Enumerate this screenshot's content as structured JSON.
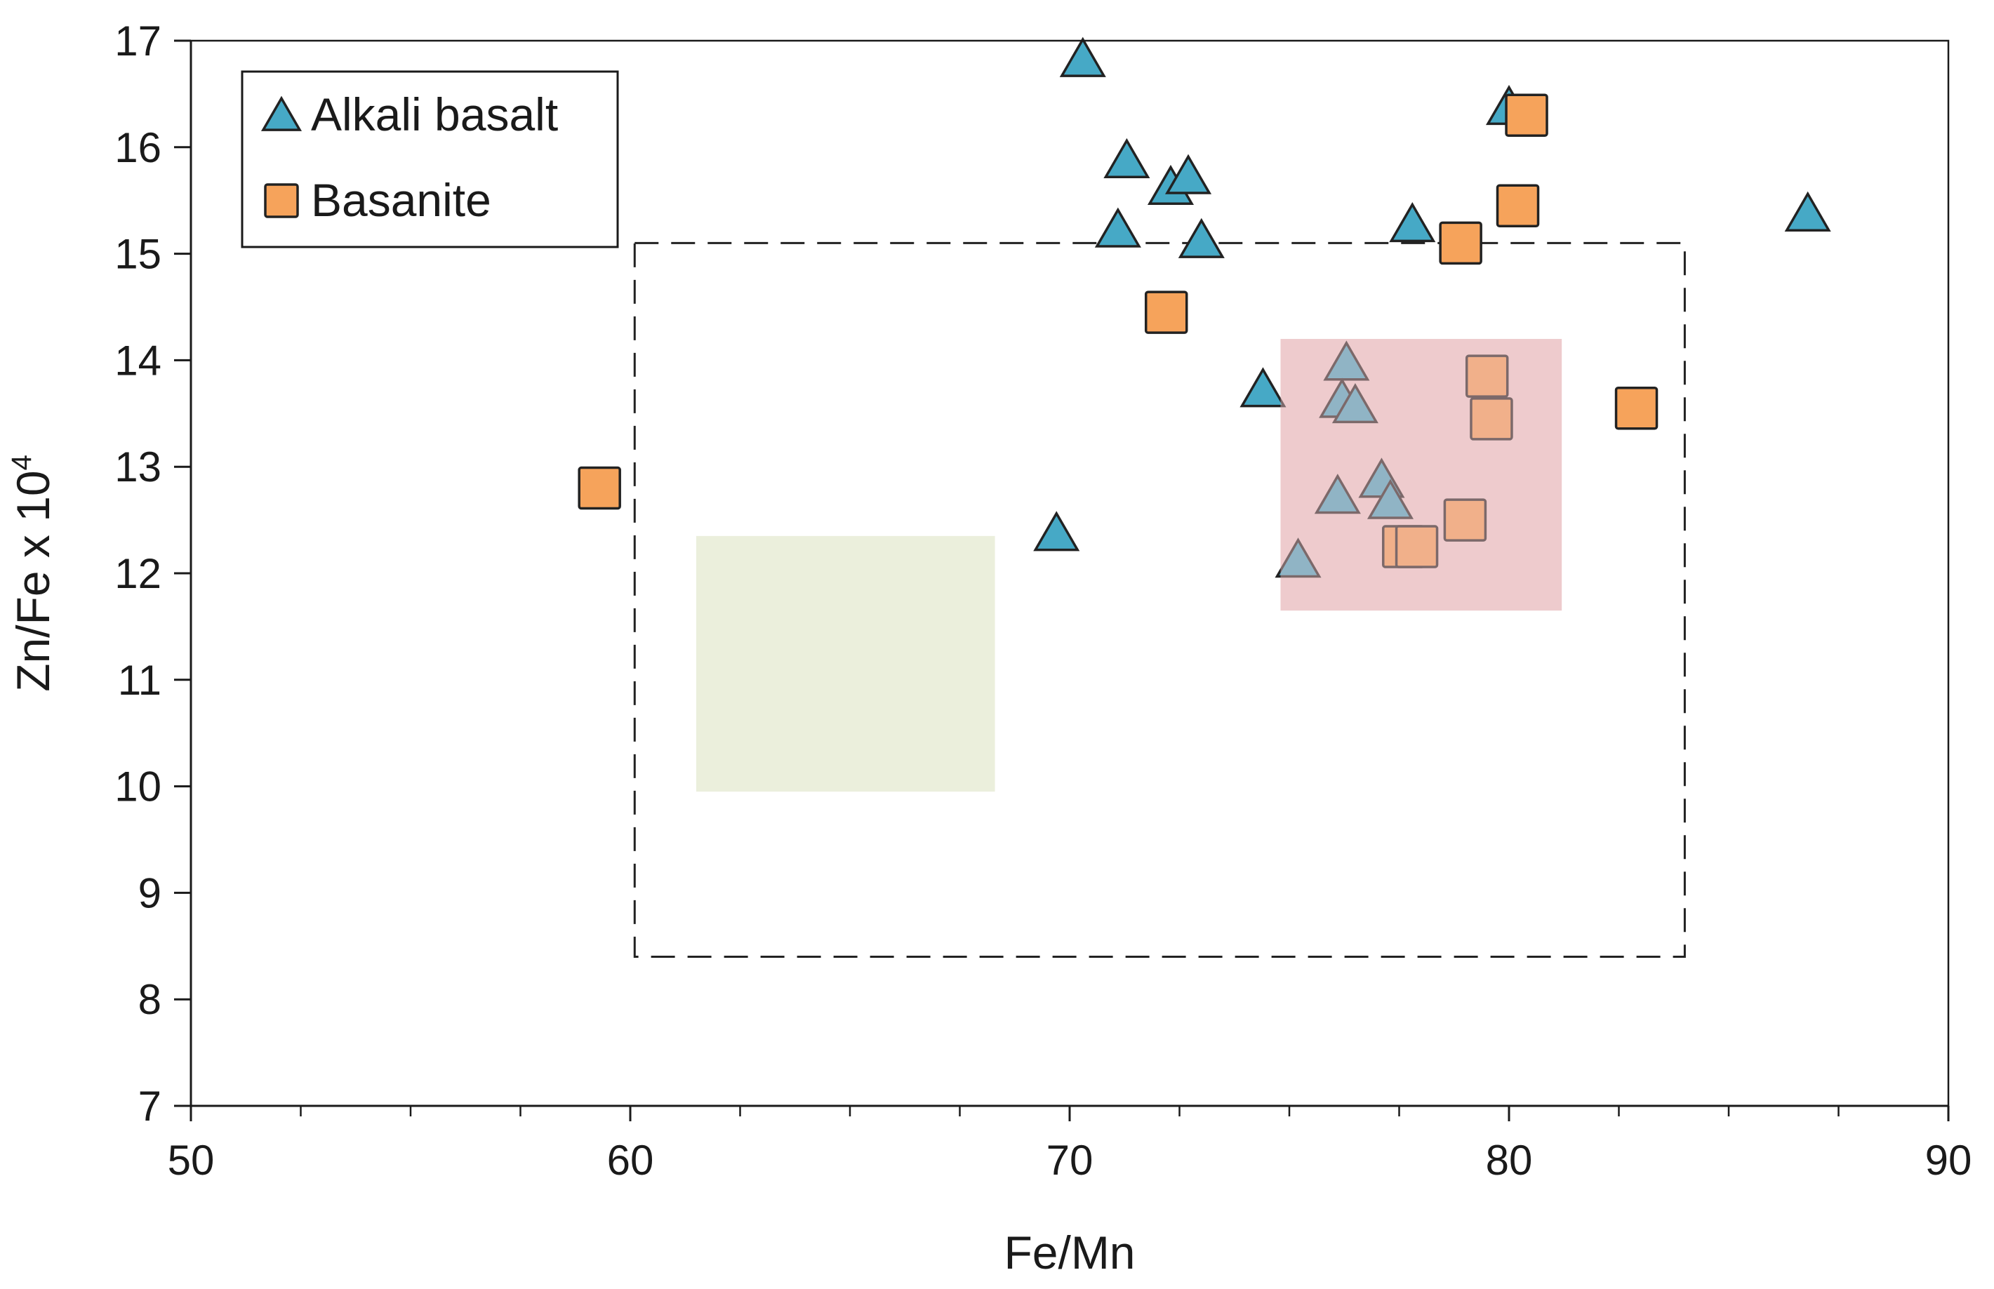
{
  "chart_data": {
    "type": "scatter",
    "xlabel": "Fe/Mn",
    "ylabel_main": "Zn/Fe x 10",
    "ylabel_sup": "4",
    "xlim": [
      50,
      90
    ],
    "ylim": [
      7,
      17
    ],
    "x_ticks": [
      50,
      60,
      70,
      80,
      90
    ],
    "x_minor_step": 2.5,
    "y_ticks": [
      7,
      8,
      9,
      10,
      11,
      12,
      13,
      14,
      15,
      16,
      17
    ],
    "grid": false,
    "legend_position": "top-left",
    "series": [
      {
        "name": "Alkali basalt",
        "marker": "triangle",
        "color": "#46a9c6",
        "points": [
          [
            70.3,
            16.8
          ],
          [
            71.3,
            15.85
          ],
          [
            72.3,
            15.6
          ],
          [
            72.7,
            15.7
          ],
          [
            71.1,
            15.2
          ],
          [
            73.0,
            15.1
          ],
          [
            80.0,
            16.35
          ],
          [
            77.8,
            15.25
          ],
          [
            86.8,
            15.35
          ],
          [
            74.4,
            13.7
          ],
          [
            69.7,
            12.35
          ],
          [
            76.3,
            13.95
          ],
          [
            76.2,
            13.6
          ],
          [
            76.5,
            13.55
          ],
          [
            76.1,
            12.7
          ],
          [
            77.1,
            12.85
          ],
          [
            77.3,
            12.65
          ],
          [
            75.2,
            12.1
          ]
        ]
      },
      {
        "name": "Basanite",
        "marker": "square",
        "color": "#f6a35b",
        "points": [
          [
            80.4,
            16.3
          ],
          [
            80.2,
            15.45
          ],
          [
            78.9,
            15.1
          ],
          [
            72.2,
            14.45
          ],
          [
            59.3,
            12.8
          ],
          [
            82.9,
            13.55
          ],
          [
            79.5,
            13.85
          ],
          [
            79.6,
            13.45
          ],
          [
            79.0,
            12.5
          ],
          [
            77.6,
            12.25
          ],
          [
            77.9,
            12.25
          ]
        ]
      }
    ],
    "regions": [
      {
        "kind": "dashed-box",
        "x": [
          60.1,
          84.0
        ],
        "y": [
          8.4,
          15.1
        ],
        "color": "#222222"
      },
      {
        "kind": "shaded",
        "x": [
          61.5,
          68.3
        ],
        "y": [
          9.95,
          12.35
        ],
        "color": "#ebefdc"
      },
      {
        "kind": "shaded",
        "x": [
          74.8,
          81.2
        ],
        "y": [
          11.65,
          14.2
        ],
        "color": "#eac2c4",
        "opacity": 0.7
      }
    ]
  }
}
